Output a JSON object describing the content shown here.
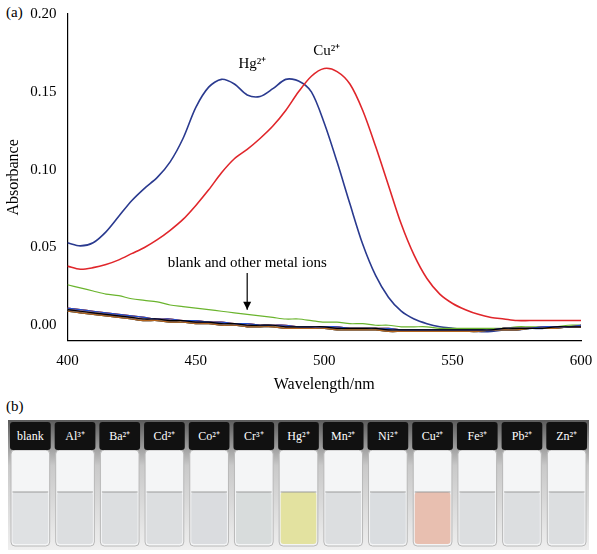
{
  "chart_data": {
    "type": "line",
    "panel_label": "(a)",
    "xlabel": "Wavelength/nm",
    "ylabel": "Absorbance",
    "xlim": [
      400,
      600
    ],
    "xticks": [
      400,
      450,
      500,
      550,
      600
    ],
    "ylim": [
      -0.01,
      0.2
    ],
    "yticks": [
      {
        "value": 0,
        "label": "0.00"
      },
      {
        "value": 0.05,
        "label": "0.05"
      },
      {
        "value": 0.1,
        "label": "0.10"
      },
      {
        "value": 0.15,
        "label": "0.15"
      },
      {
        "value": 0.2,
        "label": "0.20"
      }
    ],
    "grid": false,
    "x": [
      400,
      405,
      410,
      415,
      420,
      425,
      430,
      435,
      440,
      445,
      450,
      455,
      460,
      465,
      470,
      475,
      480,
      485,
      490,
      495,
      500,
      505,
      510,
      515,
      520,
      525,
      530,
      535,
      540,
      545,
      550,
      555,
      560,
      565,
      570,
      575,
      580,
      585,
      590,
      595,
      600
    ],
    "series": [
      {
        "name": "blank",
        "color": "#000000",
        "values": [
          0.01,
          0.009,
          0.008,
          0.007,
          0.006,
          0.005,
          0.004,
          0.004,
          0.003,
          0.003,
          0.002,
          0.002,
          0.001,
          0.001,
          0.0,
          0.0,
          0.0,
          -0.001,
          -0.001,
          -0.001,
          -0.001,
          -0.002,
          -0.002,
          -0.002,
          -0.002,
          -0.003,
          -0.003,
          -0.003,
          -0.003,
          -0.003,
          -0.003,
          -0.003,
          -0.003,
          -0.003,
          -0.002,
          -0.002,
          -0.002,
          -0.002,
          -0.001,
          -0.001,
          -0.001
        ]
      },
      {
        "name": "Al³⁺",
        "color": "#1f4fd1",
        "values": [
          0.011,
          0.01,
          0.009,
          0.008,
          0.007,
          0.006,
          0.005,
          0.004,
          0.004,
          0.003,
          0.003,
          0.002,
          0.002,
          0.001,
          0.001,
          0.0,
          0.0,
          0.0,
          -0.001,
          -0.001,
          -0.001,
          -0.001,
          -0.002,
          -0.002,
          -0.002,
          -0.002,
          -0.003,
          -0.003,
          -0.003,
          -0.003,
          -0.003,
          -0.003,
          -0.003,
          -0.003,
          -0.002,
          -0.002,
          -0.002,
          -0.001,
          -0.001,
          -0.001,
          0.0
        ]
      },
      {
        "name": "Ba²⁺",
        "color": "#b5651d",
        "values": [
          0.009,
          0.008,
          0.007,
          0.006,
          0.005,
          0.004,
          0.003,
          0.003,
          0.002,
          0.002,
          0.001,
          0.001,
          0.0,
          0.0,
          -0.001,
          -0.001,
          -0.001,
          -0.002,
          -0.002,
          -0.002,
          -0.002,
          -0.003,
          -0.003,
          -0.003,
          -0.003,
          -0.004,
          -0.004,
          -0.004,
          -0.004,
          -0.004,
          -0.004,
          -0.004,
          -0.004,
          -0.003,
          -0.003,
          -0.003,
          -0.002,
          -0.002,
          -0.002,
          -0.001,
          -0.001
        ]
      },
      {
        "name": "Cd²⁺",
        "color": "#8e44ad",
        "values": [
          0.01,
          0.009,
          0.008,
          0.007,
          0.006,
          0.005,
          0.004,
          0.004,
          0.003,
          0.003,
          0.002,
          0.002,
          0.001,
          0.001,
          0.0,
          0.0,
          0.0,
          -0.001,
          -0.001,
          -0.001,
          -0.001,
          -0.002,
          -0.002,
          -0.002,
          -0.002,
          -0.003,
          -0.003,
          -0.003,
          -0.003,
          -0.003,
          -0.003,
          -0.003,
          -0.003,
          -0.003,
          -0.002,
          -0.002,
          -0.002,
          -0.002,
          -0.001,
          -0.001,
          -0.001
        ]
      },
      {
        "name": "Co²⁺",
        "color": "#c0392b",
        "values": [
          0.011,
          0.01,
          0.009,
          0.008,
          0.007,
          0.006,
          0.005,
          0.004,
          0.004,
          0.003,
          0.003,
          0.002,
          0.002,
          0.001,
          0.001,
          0.0,
          0.0,
          0.0,
          -0.001,
          -0.001,
          -0.001,
          -0.001,
          -0.002,
          -0.002,
          -0.002,
          -0.002,
          -0.003,
          -0.003,
          -0.003,
          -0.003,
          -0.003,
          -0.003,
          -0.003,
          -0.003,
          -0.002,
          -0.002,
          -0.002,
          -0.001,
          -0.001,
          -0.001,
          0.0
        ]
      },
      {
        "name": "Cr³⁺",
        "color": "#6ab42d",
        "values": [
          0.026,
          0.024,
          0.022,
          0.02,
          0.019,
          0.017,
          0.016,
          0.015,
          0.013,
          0.012,
          0.011,
          0.01,
          0.009,
          0.008,
          0.007,
          0.006,
          0.005,
          0.004,
          0.004,
          0.003,
          0.002,
          0.002,
          0.001,
          0.001,
          0.0,
          0.0,
          -0.001,
          -0.001,
          -0.001,
          -0.002,
          -0.002,
          -0.002,
          -0.002,
          -0.002,
          -0.002,
          -0.001,
          -0.001,
          -0.001,
          -0.001,
          0.0,
          0.0
        ]
      },
      {
        "name": "Mn²⁺",
        "color": "#2c3e50",
        "values": [
          0.009,
          0.008,
          0.007,
          0.006,
          0.005,
          0.004,
          0.003,
          0.003,
          0.002,
          0.002,
          0.001,
          0.001,
          0.0,
          0.0,
          -0.001,
          -0.001,
          -0.001,
          -0.002,
          -0.002,
          -0.002,
          -0.002,
          -0.003,
          -0.003,
          -0.003,
          -0.003,
          -0.004,
          -0.004,
          -0.004,
          -0.004,
          -0.004,
          -0.004,
          -0.004,
          -0.004,
          -0.003,
          -0.003,
          -0.003,
          -0.002,
          -0.002,
          -0.002,
          -0.001,
          -0.001
        ]
      },
      {
        "name": "Ni²⁺",
        "color": "#808000",
        "values": [
          0.01,
          0.009,
          0.008,
          0.007,
          0.006,
          0.005,
          0.004,
          0.004,
          0.003,
          0.003,
          0.002,
          0.002,
          0.001,
          0.001,
          0.0,
          0.0,
          0.0,
          -0.001,
          -0.001,
          -0.001,
          -0.001,
          -0.002,
          -0.002,
          -0.002,
          -0.002,
          -0.003,
          -0.003,
          -0.003,
          -0.003,
          -0.003,
          -0.003,
          -0.003,
          -0.003,
          -0.003,
          -0.002,
          -0.002,
          -0.002,
          -0.002,
          -0.001,
          -0.001,
          -0.001
        ]
      },
      {
        "name": "Fe³⁺",
        "color": "#e67e22",
        "values": [
          0.011,
          0.01,
          0.009,
          0.008,
          0.007,
          0.006,
          0.005,
          0.004,
          0.004,
          0.003,
          0.003,
          0.002,
          0.002,
          0.001,
          0.001,
          0.0,
          0.0,
          0.0,
          -0.001,
          -0.001,
          -0.001,
          -0.001,
          -0.002,
          -0.002,
          -0.002,
          -0.002,
          -0.003,
          -0.003,
          -0.003,
          -0.003,
          -0.003,
          -0.003,
          -0.003,
          -0.003,
          -0.002,
          -0.002,
          -0.002,
          -0.001,
          -0.001,
          -0.001,
          0.0
        ]
      },
      {
        "name": "Pb²⁺",
        "color": "#7f8c8d",
        "values": [
          0.009,
          0.008,
          0.007,
          0.006,
          0.005,
          0.004,
          0.003,
          0.003,
          0.002,
          0.002,
          0.001,
          0.001,
          0.0,
          0.0,
          -0.001,
          -0.001,
          -0.001,
          -0.002,
          -0.002,
          -0.002,
          -0.002,
          -0.003,
          -0.003,
          -0.003,
          -0.003,
          -0.004,
          -0.004,
          -0.004,
          -0.004,
          -0.004,
          -0.004,
          -0.004,
          -0.004,
          -0.003,
          -0.003,
          -0.003,
          -0.002,
          -0.002,
          -0.002,
          -0.001,
          -0.001
        ]
      },
      {
        "name": "Zn²⁺",
        "color": "#16a085",
        "values": [
          0.01,
          0.009,
          0.008,
          0.007,
          0.006,
          0.005,
          0.004,
          0.004,
          0.003,
          0.003,
          0.002,
          0.002,
          0.001,
          0.001,
          0.0,
          0.0,
          0.0,
          -0.001,
          -0.001,
          -0.001,
          -0.001,
          -0.002,
          -0.002,
          -0.002,
          -0.002,
          -0.003,
          -0.003,
          -0.003,
          -0.003,
          -0.003,
          -0.003,
          -0.003,
          -0.003,
          -0.003,
          -0.002,
          -0.002,
          -0.002,
          -0.002,
          -0.001,
          -0.001,
          -0.001
        ]
      },
      {
        "name": "Cu²⁺",
        "color": "#e0262b",
        "values": [
          0.038,
          0.036,
          0.037,
          0.039,
          0.042,
          0.046,
          0.05,
          0.055,
          0.061,
          0.068,
          0.077,
          0.087,
          0.098,
          0.107,
          0.113,
          0.12,
          0.128,
          0.138,
          0.15,
          0.16,
          0.165,
          0.163,
          0.155,
          0.138,
          0.115,
          0.09,
          0.065,
          0.045,
          0.03,
          0.02,
          0.014,
          0.01,
          0.007,
          0.005,
          0.004,
          0.003,
          0.003,
          0.003,
          0.003,
          0.003,
          0.003
        ]
      },
      {
        "name": "Hg²⁺",
        "color": "#2a3a8f",
        "values": [
          0.053,
          0.051,
          0.053,
          0.06,
          0.07,
          0.08,
          0.088,
          0.095,
          0.105,
          0.12,
          0.14,
          0.153,
          0.158,
          0.155,
          0.148,
          0.147,
          0.152,
          0.158,
          0.157,
          0.15,
          0.13,
          0.105,
          0.078,
          0.052,
          0.032,
          0.018,
          0.009,
          0.004,
          0.001,
          -0.001,
          -0.002,
          -0.003,
          -0.004,
          -0.004,
          -0.003,
          -0.003,
          -0.002,
          -0.002,
          -0.001,
          -0.001,
          0.0
        ]
      }
    ],
    "annotations": [
      {
        "text": "Hg²⁺",
        "x": 472,
        "y": 0.168
      },
      {
        "text": "Cu²⁺",
        "x": 501,
        "y": 0.176
      },
      {
        "text": "blank and other metal ions",
        "x": 470,
        "y": 0.04,
        "arrow_to": [
          470,
          0.01
        ]
      }
    ]
  },
  "photo": {
    "panel_label": "(b)",
    "vials": [
      {
        "label": "blank",
        "color": "#dfe1e3"
      },
      {
        "label": "Al³⁺",
        "color": "#dcdee0"
      },
      {
        "label": "Ba²⁺",
        "color": "#dcdee0"
      },
      {
        "label": "Cd²⁺",
        "color": "#dcdee0"
      },
      {
        "label": "Co²⁺",
        "color": "#dadcdf"
      },
      {
        "label": "Cr³⁺",
        "color": "#d8dcdc"
      },
      {
        "label": "Hg²⁺",
        "color": "#e3e2a0"
      },
      {
        "label": "Mn²⁺",
        "color": "#dcdee0"
      },
      {
        "label": "Ni²⁺",
        "color": "#dadde0"
      },
      {
        "label": "Cu²⁺",
        "color": "#e8bfb0"
      },
      {
        "label": "Fe³⁺",
        "color": "#dcdee0"
      },
      {
        "label": "Pb²⁺",
        "color": "#dcdee0"
      },
      {
        "label": "Zn²⁺",
        "color": "#dcdee0"
      }
    ]
  }
}
